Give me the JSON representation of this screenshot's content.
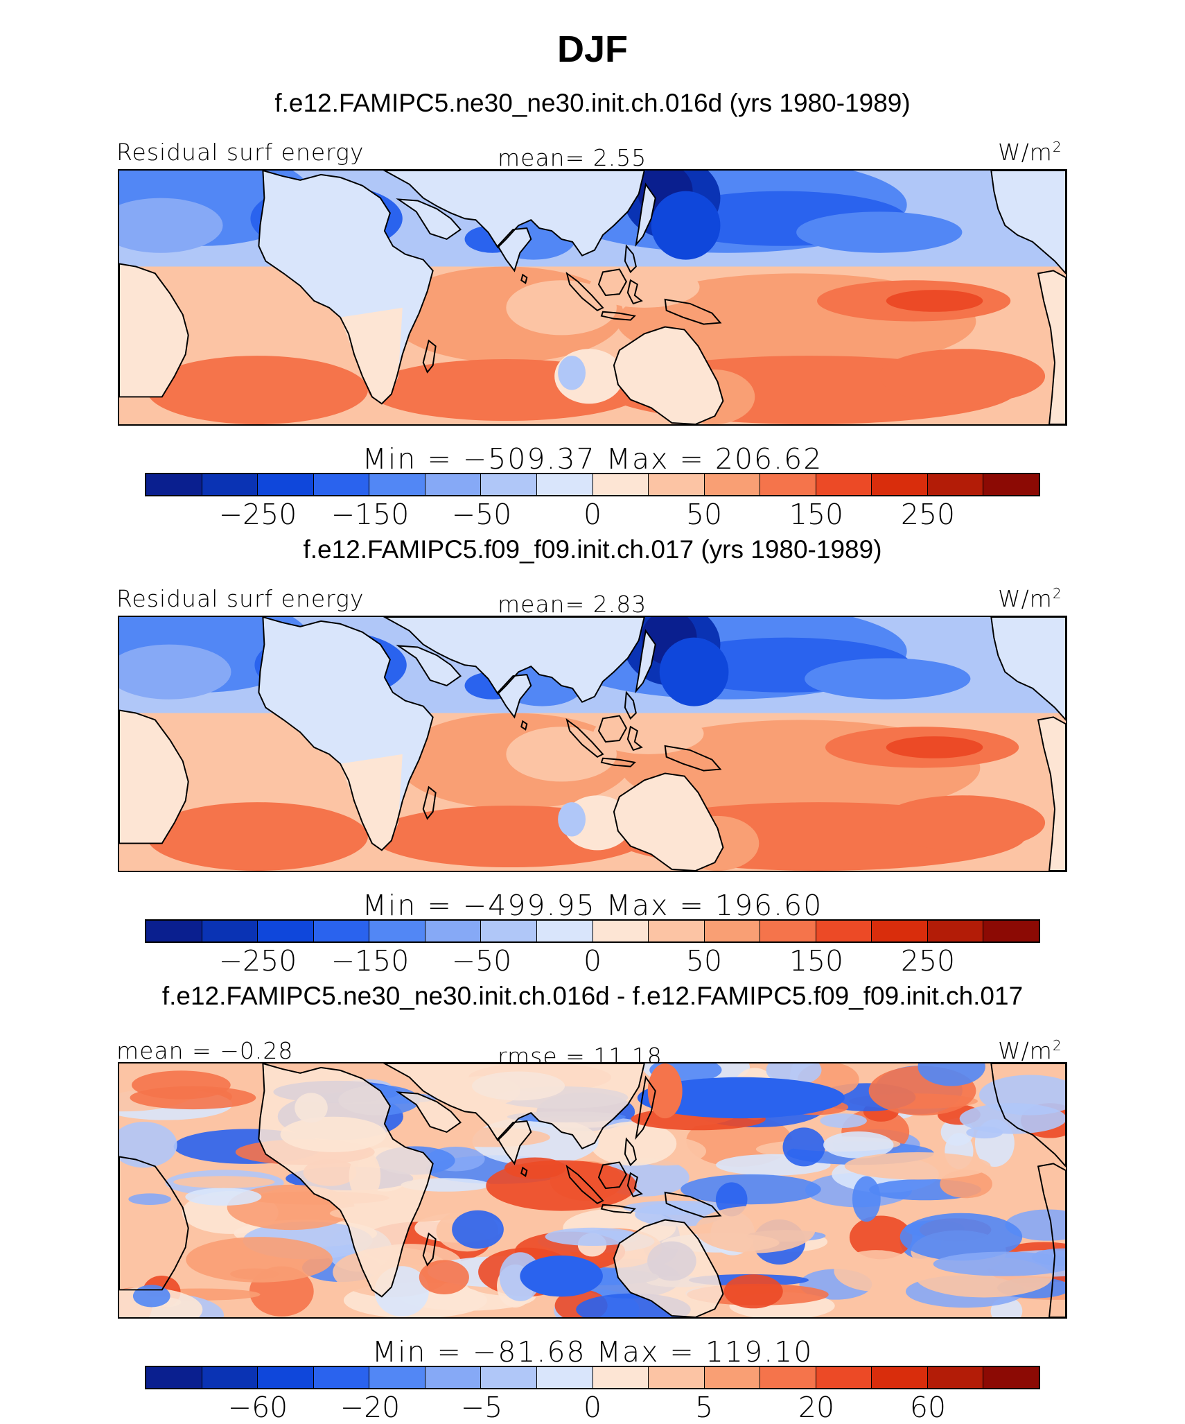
{
  "title": "DJF",
  "palette": [
    "#0a1f8f",
    "#0a33b4",
    "#0f47db",
    "#2a63ee",
    "#5287f5",
    "#86a9f6",
    "#b0c7f8",
    "#d9e5fb",
    "#fde5d4",
    "#fcc4a4",
    "#f99f74",
    "#f5744b",
    "#ec4a26",
    "#d92d0c",
    "#b31c07",
    "#8c0a04"
  ],
  "panels": [
    {
      "case_title": "f.e12.FAMIPC5.ne30_ne30.init.ch.016d (yrs 1980-1989)",
      "left_label": "Residual surf energy",
      "center_label": "mean=   2.55",
      "units": "W/m",
      "units_exp": "2",
      "minmax": "Min = −509.37 Max = 206.62",
      "ticks": [
        "−250",
        "−150",
        "−50",
        "0",
        "50",
        "150",
        "250"
      ],
      "map_style": "field"
    },
    {
      "case_title": "f.e12.FAMIPC5.f09_f09.init.ch.017 (yrs 1980-1989)",
      "left_label": "Residual surf energy",
      "center_label": "mean=   2.83",
      "units": "W/m",
      "units_exp": "2",
      "minmax": "Min = −499.95 Max = 196.60",
      "ticks": [
        "−250",
        "−150",
        "−50",
        "0",
        "50",
        "150",
        "250"
      ],
      "map_style": "field"
    },
    {
      "case_title": "f.e12.FAMIPC5.ne30_ne30.init.ch.016d - f.e12.FAMIPC5.f09_f09.init.ch.017",
      "left_label": "mean =  −0.28",
      "center_label": "rmse =   11.18",
      "units": "W/m",
      "units_exp": "2",
      "minmax": "Min = −81.68 Max = 119.10",
      "ticks": [
        "−60",
        "−20",
        "−5",
        "0",
        "5",
        "20",
        "60"
      ],
      "map_style": "diff"
    }
  ]
}
